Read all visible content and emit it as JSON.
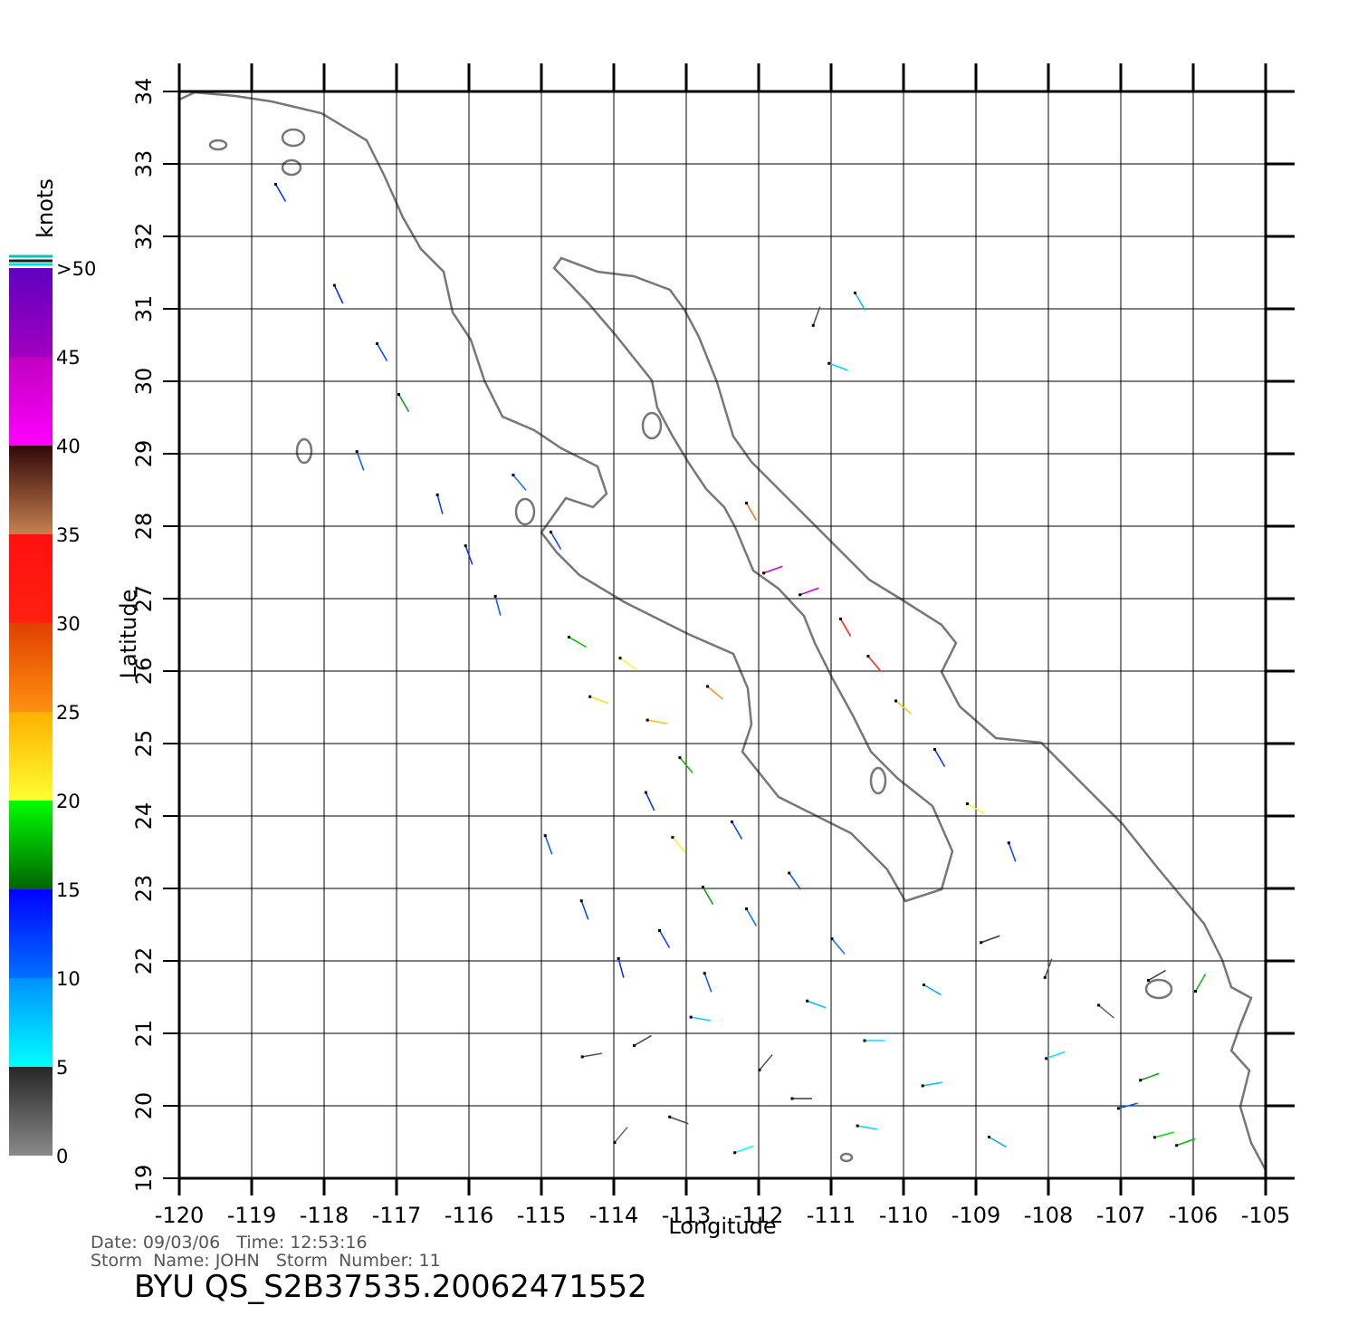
{
  "chart_data": {
    "type": "wind-vectors",
    "xlabel": "Longitude",
    "ylabel": "Latitude",
    "xlim": [
      -120,
      -105
    ],
    "ylim": [
      19,
      34
    ],
    "xticks": [
      -120,
      -119,
      -118,
      -117,
      -116,
      -115,
      -114,
      -113,
      -112,
      -111,
      -110,
      -109,
      -108,
      -107,
      -106,
      -105
    ],
    "yticks": [
      19,
      20,
      21,
      22,
      23,
      24,
      25,
      26,
      27,
      28,
      29,
      30,
      31,
      32,
      33,
      34
    ],
    "grid": true,
    "colorbar": {
      "label": "knots",
      "lim": [
        0,
        50
      ],
      "ticks": [
        0,
        5,
        10,
        15,
        20,
        25,
        30,
        35,
        40,
        45,
        {
          "value": 50,
          "label": ">50"
        }
      ],
      "colors": [
        [
          "#8a8a8a",
          "#262626"
        ],
        [
          "#00ffff",
          "#0090ff"
        ],
        [
          "#0070ff",
          "#0000ff"
        ],
        [
          "#006400",
          "#00ff00"
        ],
        [
          "#ffff30",
          "#ffb000"
        ],
        [
          "#ff9010",
          "#e04000"
        ],
        [
          "#ff2010",
          "#ff1010"
        ],
        [
          "#c88050",
          "#300808"
        ],
        [
          "#ff00ff",
          "#c000c0"
        ],
        [
          "#a000c0",
          "#6000c0"
        ]
      ]
    },
    "vectors": {
      "lon": [
        -118.6,
        -117.8,
        -117.2,
        -117.5,
        -116.9,
        -116.4,
        -116.0,
        -115.6,
        -115.3,
        -114.8,
        -114.5,
        -114.2,
        -113.8,
        -113.4,
        -113.0,
        -112.6,
        -113.5,
        -113.1,
        -112.7,
        -112.3,
        -114.9,
        -114.4,
        -113.9,
        -113.3,
        -112.7,
        -112.1,
        -111.5,
        -110.9,
        -114.3,
        -113.6,
        -112.8,
        -111.9,
        -111.2,
        -110.4,
        -109.6,
        -108.8,
        -108.0,
        -107.2,
        -106.5,
        -113.9,
        -113.1,
        -112.2,
        -111.4,
        -110.5,
        -109.6,
        -108.7,
        -107.9,
        -106.9,
        -106.1,
        -112.1,
        -111.8,
        -111.3,
        -110.8,
        -110.4,
        -110.0,
        -109.5,
        -109.0,
        -108.5,
        -106.6,
        -106.4,
        -105.9,
        -111.2,
        -110.9,
        -110.6
      ],
      "lat": [
        32.6,
        31.2,
        30.4,
        28.9,
        29.7,
        28.3,
        27.6,
        26.9,
        28.6,
        27.8,
        26.4,
        25.6,
        26.1,
        25.3,
        24.7,
        25.7,
        24.2,
        23.6,
        22.9,
        23.8,
        23.6,
        22.7,
        21.9,
        22.3,
        21.7,
        22.6,
        23.1,
        22.2,
        20.7,
        20.9,
        21.2,
        20.6,
        21.4,
        20.9,
        21.6,
        22.3,
        21.9,
        21.3,
        21.8,
        19.6,
        19.8,
        19.4,
        20.1,
        19.7,
        20.3,
        19.5,
        20.7,
        20.0,
        19.5,
        28.2,
        27.4,
        27.1,
        26.6,
        26.1,
        25.5,
        24.8,
        24.1,
        23.5,
        20.4,
        19.6,
        21.7,
        30.9,
        30.2,
        31.1
      ],
      "speed": [
        13,
        14,
        12,
        11,
        17,
        12,
        13,
        11,
        10,
        12,
        18,
        22,
        21,
        24,
        18,
        25,
        13,
        21,
        17,
        12,
        11,
        12,
        13,
        12,
        11,
        10,
        11,
        10,
        3,
        4,
        7,
        3,
        8,
        6,
        9,
        4,
        3,
        2,
        4,
        2,
        3,
        5,
        4,
        7,
        8,
        9,
        6,
        11,
        18,
        27,
        43,
        44,
        32,
        31,
        24,
        13,
        21,
        12,
        17,
        19,
        18,
        3,
        7,
        8
      ],
      "direction": [
        150,
        155,
        150,
        160,
        150,
        165,
        160,
        165,
        140,
        150,
        120,
        110,
        125,
        100,
        140,
        130,
        155,
        140,
        150,
        150,
        160,
        160,
        165,
        150,
        160,
        150,
        145,
        140,
        80,
        60,
        100,
        40,
        110,
        90,
        120,
        70,
        20,
        130,
        60,
        40,
        110,
        70,
        90,
        100,
        80,
        120,
        70,
        75,
        70,
        150,
        70,
        70,
        150,
        140,
        130,
        150,
        120,
        160,
        70,
        75,
        30,
        20,
        110,
        150
      ]
    },
    "footer": {
      "date": "Date: 09/03/06   Time: 12:53:16",
      "storm": "Storm  Name: JOHN   Storm  Number: 11",
      "product": "BYU  QS_S2B37535.20062471552"
    }
  }
}
